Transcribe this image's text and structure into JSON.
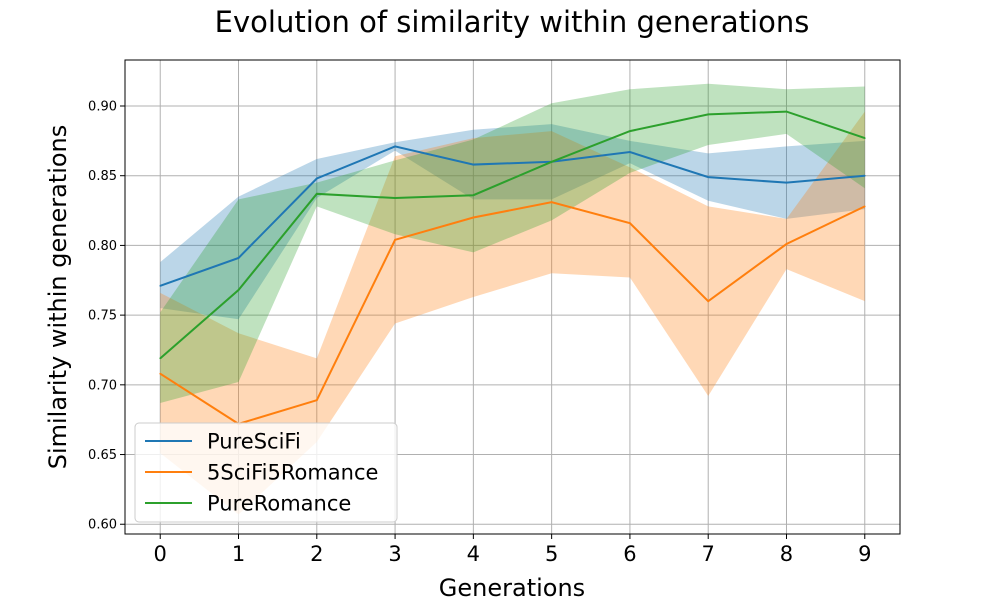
{
  "chart_data": {
    "type": "line",
    "title": "Evolution of similarity within generations",
    "xlabel": "Generations",
    "ylabel": "Similarity within generations",
    "x": [
      0,
      1,
      2,
      3,
      4,
      5,
      6,
      7,
      8,
      9
    ],
    "xlim": [
      -0.45,
      9.45
    ],
    "ylim": [
      0.593,
      0.933
    ],
    "yticks": [
      "0.60",
      "0.65",
      "0.70",
      "0.75",
      "0.80",
      "0.85",
      "0.90"
    ],
    "ytick_values": [
      0.6,
      0.65,
      0.7,
      0.75,
      0.8,
      0.85,
      0.9
    ],
    "xticks": [
      "0",
      "1",
      "2",
      "3",
      "4",
      "5",
      "6",
      "7",
      "8",
      "9"
    ],
    "grid": true,
    "legend_position": "bottom-left",
    "series": [
      {
        "name": "PureSciFi",
        "color": "#1f77b4",
        "values": [
          0.771,
          0.791,
          0.848,
          0.871,
          0.858,
          0.86,
          0.867,
          0.849,
          0.845,
          0.85
        ],
        "band_upper": [
          0.788,
          0.835,
          0.862,
          0.874,
          0.883,
          0.887,
          0.875,
          0.866,
          0.871,
          0.875
        ],
        "band_lower": [
          0.755,
          0.747,
          0.834,
          0.868,
          0.833,
          0.833,
          0.859,
          0.832,
          0.819,
          0.826
        ]
      },
      {
        "name": "5SciFi5Romance",
        "color": "#ff7f0e",
        "values": [
          0.708,
          0.672,
          0.689,
          0.804,
          0.82,
          0.831,
          0.816,
          0.76,
          0.801,
          0.828
        ],
        "band_upper": [
          0.766,
          0.737,
          0.719,
          0.864,
          0.877,
          0.882,
          0.856,
          0.828,
          0.819,
          0.896
        ],
        "band_lower": [
          0.651,
          0.607,
          0.659,
          0.744,
          0.763,
          0.78,
          0.777,
          0.692,
          0.783,
          0.76
        ]
      },
      {
        "name": "PureRomance",
        "color": "#2ca02c",
        "values": [
          0.719,
          0.768,
          0.837,
          0.834,
          0.836,
          0.86,
          0.882,
          0.894,
          0.896,
          0.877
        ],
        "band_upper": [
          0.752,
          0.833,
          0.845,
          0.861,
          0.876,
          0.902,
          0.912,
          0.916,
          0.912,
          0.914
        ],
        "band_lower": [
          0.687,
          0.702,
          0.828,
          0.808,
          0.795,
          0.818,
          0.852,
          0.872,
          0.88,
          0.841
        ]
      }
    ]
  }
}
